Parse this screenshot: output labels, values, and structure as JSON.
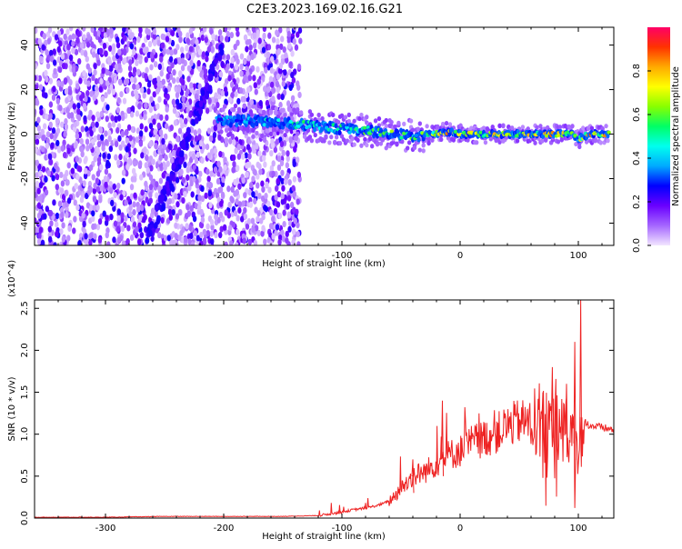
{
  "title": "C2E3.2023.169.02.16.G21",
  "chart_data": [
    {
      "type": "heatmap",
      "xlabel": "Height of straight line (km)",
      "ylabel": "Frequency (Hz)",
      "xlim": [
        -360,
        130
      ],
      "ylim": [
        -50,
        48
      ],
      "xticks": [
        -300,
        -200,
        -100,
        0,
        100
      ],
      "yticks": [
        -40,
        -20,
        0,
        20,
        40
      ],
      "colorbar": {
        "label": "Normalized spectral amplitude",
        "range": [
          0.0,
          1.0
        ],
        "ticks": [
          0.0,
          0.2,
          0.4,
          0.6,
          0.8
        ],
        "colors": [
          "#f2e6ff",
          "#a566ff",
          "#6a00ff",
          "#0000ff",
          "#00aaff",
          "#00ffee",
          "#00ff66",
          "#88ff00",
          "#ffff00",
          "#ffaa00",
          "#ff3300",
          "#ff0066"
        ]
      },
      "noise_region_x": [
        -360,
        -135
      ],
      "diagonal_feature": {
        "x": [
          -200,
          -265
        ],
        "y": [
          40,
          -48
        ]
      },
      "ridge": {
        "x": [
          -205,
          -180,
          -150,
          -130,
          -110,
          -90,
          -70,
          -50,
          -35,
          -25,
          -10,
          0,
          20,
          40,
          60,
          80,
          95,
          100,
          110,
          125
        ],
        "y": [
          6,
          6,
          5,
          4,
          3,
          2,
          1,
          0,
          -1,
          0,
          1,
          0,
          0,
          0,
          0,
          0,
          0,
          -2,
          0,
          0
        ],
        "amplitude": [
          0.4,
          0.45,
          0.5,
          0.55,
          0.55,
          0.6,
          0.6,
          0.65,
          0.6,
          0.7,
          0.85,
          0.75,
          0.75,
          0.8,
          0.85,
          0.9,
          0.85,
          0.7,
          0.9,
          0.85
        ]
      }
    },
    {
      "type": "line",
      "xlabel": "Height of straight line (km)",
      "ylabel": "SNR (10 * v/v)",
      "y_multiplier": "(x10^4)",
      "xlim": [
        -360,
        130
      ],
      "ylim": [
        0,
        2.6
      ],
      "xticks": [
        -300,
        -200,
        -100,
        0,
        100
      ],
      "yticks": [
        0.0,
        0.5,
        1.0,
        1.5,
        2.0,
        2.5
      ],
      "series_color": "#ee2222",
      "series": [
        {
          "x": [
            -360,
            -300,
            -250,
            -200,
            -150,
            -120,
            -100,
            -90,
            -80,
            -70,
            -60,
            -50,
            -40,
            -30,
            -20,
            -10,
            0,
            10,
            20,
            30,
            40,
            50,
            60,
            70,
            80,
            90,
            95,
            100,
            105,
            110,
            120,
            130
          ],
          "y": [
            0.01,
            0.01,
            0.02,
            0.02,
            0.02,
            0.03,
            0.07,
            0.1,
            0.12,
            0.15,
            0.2,
            0.35,
            0.5,
            0.55,
            0.65,
            0.75,
            0.8,
            0.9,
            0.95,
            1.0,
            1.1,
            1.15,
            1.15,
            1.18,
            1.15,
            1.0,
            0.95,
            0.8,
            1.15,
            1.1,
            1.08,
            1.05
          ]
        }
      ],
      "peaks": {
        "x": [
          -40,
          -15,
          70,
          78,
          90,
          97,
          102
        ],
        "y": [
          0.7,
          1.4,
          1.5,
          1.8,
          1.6,
          2.1,
          2.62
        ]
      }
    }
  ]
}
